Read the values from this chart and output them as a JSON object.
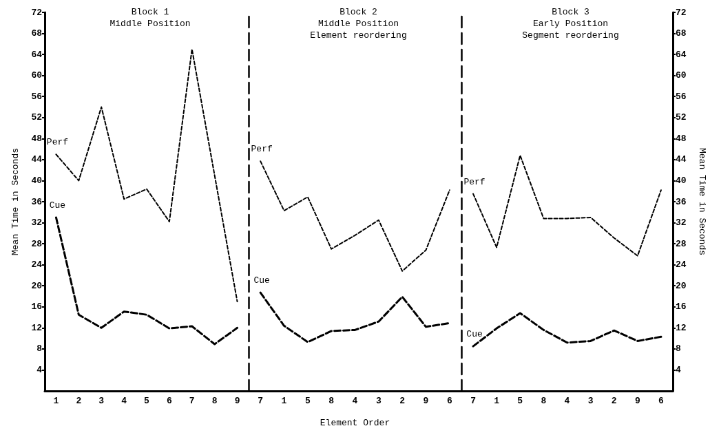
{
  "chart_data": [
    {
      "type": "line",
      "title": "Block 1\nMiddle Position",
      "ylabel": "Mean Time in Seconds",
      "categories": [
        "1",
        "2",
        "3",
        "4",
        "5",
        "6",
        "7",
        "8",
        "9"
      ],
      "ylim": [
        0,
        72
      ],
      "yticks": [
        4,
        8,
        12,
        16,
        20,
        24,
        28,
        32,
        36,
        40,
        44,
        48,
        52,
        56,
        60,
        64,
        68,
        72
      ],
      "marker": "none",
      "legend": false,
      "grid": false,
      "series": [
        {
          "name": "Perf",
          "color": "#000000",
          "line_style": "dotted",
          "values": [
            45,
            40,
            54,
            36.5,
            38.4,
            32.2,
            65,
            41,
            17
          ]
        },
        {
          "name": "Cue",
          "color": "#000000",
          "line_style": "dashed",
          "values": [
            33,
            14.5,
            12,
            15.1,
            14.5,
            11.9,
            12.3,
            8.9,
            12
          ]
        }
      ]
    },
    {
      "type": "line",
      "title": "Block 2\nMiddle Position\nElement reordering",
      "xlabel": "Element Order",
      "categories": [
        "7",
        "1",
        "5",
        "8",
        "4",
        "3",
        "2",
        "9",
        "6"
      ],
      "ylim": [
        0,
        72
      ],
      "tick_labels": "x",
      "marker": "none",
      "legend": false,
      "grid": false,
      "series": [
        {
          "name": "Perf",
          "color": "#000000",
          "line_style": "dotted",
          "values": [
            43.7,
            34.3,
            36.9,
            27,
            29.6,
            32.5,
            22.8,
            26.8,
            38.2
          ]
        },
        {
          "name": "Cue",
          "color": "#000000",
          "line_style": "dashed",
          "values": [
            18.7,
            12.4,
            9.3,
            11.4,
            11.6,
            13.2,
            17.9,
            12.2,
            12.9
          ]
        }
      ]
    },
    {
      "type": "line",
      "title": "Block 3\nEarly Position\nSegment reordering",
      "ylabel": "Mean Time in Seconds",
      "categories": [
        "7",
        "1",
        "5",
        "8",
        "4",
        "3",
        "2",
        "9",
        "6"
      ],
      "ylim": [
        0,
        72
      ],
      "yticks": [
        4,
        8,
        12,
        16,
        20,
        24,
        28,
        32,
        36,
        40,
        44,
        48,
        52,
        56,
        60,
        64,
        68,
        72
      ],
      "marker": "none",
      "legend": false,
      "grid": false,
      "series": [
        {
          "name": "Perf",
          "color": "#000000",
          "line_style": "dotted",
          "values": [
            37.5,
            27.3,
            44.8,
            32.8,
            32.8,
            33,
            29.1,
            25.7,
            38.2
          ]
        },
        {
          "name": "Cue",
          "color": "#000000",
          "line_style": "dashed",
          "values": [
            8.5,
            11.9,
            14.8,
            11.6,
            9.2,
            9.5,
            11.5,
            9.5,
            10.3
          ]
        }
      ]
    }
  ]
}
